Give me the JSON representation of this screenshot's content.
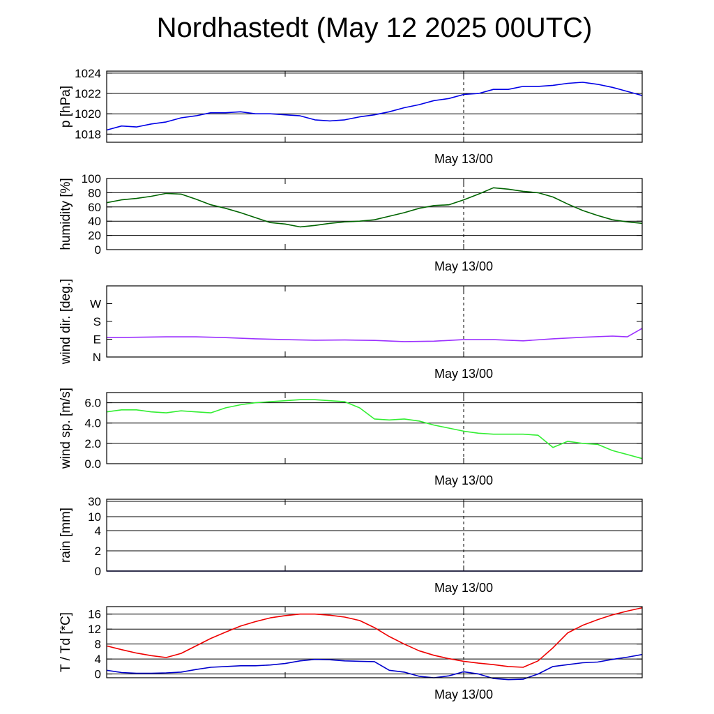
{
  "title": "Nordhastedt (May 12 2025 00UTC)",
  "xtick_label": "May 13/00",
  "chart_data": [
    {
      "id": "pressure",
      "type": "line",
      "ylabel": "p [hPa]",
      "ylim": [
        1017.2,
        1024.2
      ],
      "yticks": [
        1018,
        1020,
        1022,
        1024
      ],
      "ytick_labels": [
        "1018",
        "1020",
        "1022",
        "1024"
      ],
      "grid": true,
      "series": [
        {
          "color": "#0000e6",
          "x": [
            0,
            1,
            2,
            3,
            4,
            5,
            6,
            7,
            8,
            9,
            10,
            11,
            12,
            13,
            14,
            15,
            16,
            17,
            18,
            19,
            20,
            21,
            22,
            23,
            24,
            25,
            26,
            27,
            28,
            29,
            30,
            31,
            32,
            33,
            34,
            35,
            36
          ],
          "y": [
            1018.4,
            1018.8,
            1018.7,
            1019.0,
            1019.2,
            1019.6,
            1019.8,
            1020.1,
            1020.1,
            1020.2,
            1020.0,
            1020.0,
            1019.9,
            1019.8,
            1019.4,
            1019.3,
            1019.4,
            1019.7,
            1019.9,
            1020.2,
            1020.6,
            1020.9,
            1021.3,
            1021.5,
            1021.9,
            1022.0,
            1022.4,
            1022.4,
            1022.7,
            1022.7,
            1022.8,
            1023.0,
            1023.1,
            1022.9,
            1022.6,
            1022.2,
            1021.8
          ]
        }
      ]
    },
    {
      "id": "humidity",
      "type": "line",
      "ylabel": "humidity [%]",
      "ylim": [
        0,
        100
      ],
      "yticks": [
        0,
        20,
        40,
        60,
        80,
        100
      ],
      "ytick_labels": [
        "0",
        "20",
        "40",
        "60",
        "80",
        "100"
      ],
      "grid": true,
      "series": [
        {
          "color": "#006400",
          "x": [
            0,
            1,
            2,
            3,
            4,
            5,
            6,
            7,
            8,
            9,
            10,
            11,
            12,
            13,
            14,
            15,
            16,
            17,
            18,
            19,
            20,
            21,
            22,
            23,
            24,
            25,
            26,
            27,
            28,
            29,
            30,
            31,
            32,
            33,
            34,
            35,
            36
          ],
          "y": [
            66,
            70,
            72,
            75,
            79,
            78,
            71,
            63,
            58,
            52,
            45,
            38,
            36,
            32,
            34,
            37,
            39,
            40,
            42,
            47,
            52,
            58,
            62,
            63,
            70,
            78,
            87,
            85,
            82,
            80,
            74,
            64,
            55,
            48,
            42,
            39,
            37
          ]
        }
      ]
    },
    {
      "id": "wind_direction",
      "type": "line",
      "ylabel": "wind dir. [deg.]",
      "ylim": [
        0,
        360
      ],
      "yticks": [
        0,
        90,
        180,
        270
      ],
      "ytick_labels": [
        "N",
        "E",
        "S",
        "W"
      ],
      "grid": false,
      "series": [
        {
          "color": "#9b30ff",
          "x": [
            0,
            2,
            4,
            6,
            8,
            10,
            12,
            14,
            16,
            18,
            20,
            22,
            24,
            26,
            28,
            30,
            32,
            34,
            35,
            36
          ],
          "y": [
            98,
            100,
            102,
            102,
            98,
            92,
            88,
            85,
            86,
            84,
            78,
            80,
            88,
            88,
            82,
            92,
            100,
            106,
            102,
            145
          ]
        }
      ]
    },
    {
      "id": "wind_speed",
      "type": "line",
      "ylabel": "wind sp. [m/s]",
      "ylim": [
        0,
        7
      ],
      "yticks": [
        0,
        2,
        4,
        6
      ],
      "ytick_labels": [
        "0.0",
        "2.0",
        "4.0",
        "6.0"
      ],
      "grid": true,
      "series": [
        {
          "color": "#33ee33",
          "x": [
            0,
            1,
            2,
            3,
            4,
            5,
            6,
            7,
            8,
            9,
            10,
            11,
            12,
            13,
            14,
            15,
            16,
            17,
            18,
            19,
            20,
            21,
            22,
            23,
            24,
            25,
            26,
            27,
            28,
            29,
            30,
            31,
            32,
            33,
            34,
            35,
            36
          ],
          "y": [
            5.1,
            5.3,
            5.3,
            5.1,
            5.0,
            5.2,
            5.1,
            5.0,
            5.5,
            5.8,
            6.0,
            6.1,
            6.2,
            6.3,
            6.3,
            6.2,
            6.1,
            5.5,
            4.4,
            4.3,
            4.4,
            4.2,
            3.8,
            3.5,
            3.2,
            3.0,
            2.9,
            2.9,
            2.9,
            2.8,
            1.6,
            2.2,
            2.0,
            1.9,
            1.3,
            0.9,
            0.5
          ]
        }
      ]
    },
    {
      "id": "rain",
      "type": "line",
      "ylabel": "rain [mm]",
      "ylim": [
        0,
        31
      ],
      "yticks": [
        0,
        2,
        4,
        10,
        30
      ],
      "ytick_labels": [
        "0",
        "2",
        "4",
        "10",
        "30"
      ],
      "grid": true,
      "series": [
        {
          "color": "#00008b",
          "x": [
            0,
            36
          ],
          "y": [
            0,
            0
          ]
        }
      ]
    },
    {
      "id": "temperature",
      "type": "line",
      "ylabel": "T / Td [*C]",
      "ylim": [
        -1,
        18
      ],
      "yticks": [
        0,
        4,
        8,
        12,
        16
      ],
      "ytick_labels": [
        "0",
        "4",
        "8",
        "12",
        "16"
      ],
      "grid": true,
      "series": [
        {
          "color": "#ee0000",
          "x": [
            0,
            1,
            2,
            3,
            4,
            5,
            6,
            7,
            8,
            9,
            10,
            11,
            12,
            13,
            14,
            15,
            16,
            17,
            18,
            19,
            20,
            21,
            22,
            23,
            24,
            25,
            26,
            27,
            28,
            29,
            30,
            31,
            32,
            33,
            34,
            35,
            36
          ],
          "y": [
            7.5,
            6.5,
            5.6,
            4.9,
            4.4,
            5.5,
            7.5,
            9.5,
            11.2,
            12.8,
            14.0,
            15.0,
            15.6,
            16.0,
            16.0,
            15.7,
            15.2,
            14.3,
            12.4,
            10.0,
            8.0,
            6.2,
            5.0,
            4.1,
            3.4,
            2.9,
            2.5,
            2.0,
            1.8,
            3.5,
            7.0,
            11.0,
            13.0,
            14.5,
            15.8,
            16.8,
            17.7
          ]
        },
        {
          "color": "#0000cc",
          "x": [
            0,
            1,
            2,
            3,
            4,
            5,
            6,
            7,
            8,
            9,
            10,
            11,
            12,
            13,
            14,
            15,
            16,
            17,
            18,
            19,
            20,
            21,
            22,
            23,
            24,
            25,
            26,
            27,
            28,
            29,
            30,
            31,
            32,
            33,
            34,
            35,
            36
          ],
          "y": [
            1.0,
            0.4,
            0.2,
            0.2,
            0.3,
            0.5,
            1.2,
            1.8,
            2.0,
            2.2,
            2.2,
            2.4,
            2.8,
            3.5,
            3.9,
            3.8,
            3.5,
            3.4,
            3.3,
            1.0,
            0.5,
            -0.6,
            -1.0,
            -0.5,
            0.6,
            0.0,
            -1.2,
            -1.5,
            -1.4,
            0.0,
            2.0,
            2.5,
            3.0,
            3.2,
            3.9,
            4.5,
            5.2
          ]
        }
      ]
    }
  ]
}
